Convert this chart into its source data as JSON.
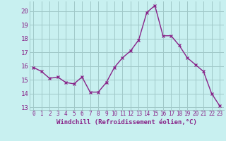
{
  "x": [
    0,
    1,
    2,
    3,
    4,
    5,
    6,
    7,
    8,
    9,
    10,
    11,
    12,
    13,
    14,
    15,
    16,
    17,
    18,
    19,
    20,
    21,
    22,
    23
  ],
  "y": [
    15.9,
    15.6,
    15.1,
    15.2,
    14.8,
    14.7,
    15.2,
    14.1,
    14.1,
    14.8,
    15.9,
    16.6,
    17.1,
    17.9,
    19.9,
    20.4,
    18.2,
    18.2,
    17.5,
    16.6,
    16.1,
    15.6,
    14.0,
    13.1
  ],
  "line_color": "#882288",
  "marker": "x",
  "marker_color": "#882288",
  "bg_color": "#c8f0f0",
  "grid_color": "#a0c8c8",
  "xlabel": "Windchill (Refroidissement éolien,°C)",
  "xlabel_color": "#882288",
  "tick_color": "#882288",
  "ylim_min": 12.8,
  "ylim_max": 20.7,
  "xlim_min": -0.5,
  "xlim_max": 23.5,
  "yticks": [
    13,
    14,
    15,
    16,
    17,
    18,
    19,
    20
  ],
  "xticks": [
    0,
    1,
    2,
    3,
    4,
    5,
    6,
    7,
    8,
    9,
    10,
    11,
    12,
    13,
    14,
    15,
    16,
    17,
    18,
    19,
    20,
    21,
    22,
    23
  ],
  "line_width": 1.0,
  "marker_size": 3
}
